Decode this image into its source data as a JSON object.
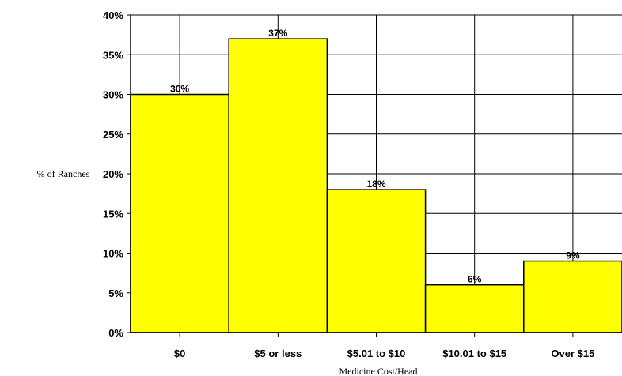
{
  "chart_data": {
    "type": "bar",
    "title": "",
    "xlabel": "Medicine Cost/Head",
    "ylabel": "% of Ranches",
    "categories": [
      "$0",
      "$5 or less",
      "$5.01 to $10",
      "$10.01 to $15",
      "Over $15"
    ],
    "values": [
      30,
      37,
      18,
      6,
      9
    ],
    "data_labels": [
      "30%",
      "37%",
      "18%",
      "6%",
      "9%"
    ],
    "ylim": [
      0,
      40
    ],
    "yticks": [
      0,
      5,
      10,
      15,
      20,
      25,
      30,
      35,
      40
    ],
    "ytick_labels": [
      "0%",
      "5%",
      "10%",
      "15%",
      "20%",
      "25%",
      "30%",
      "35%",
      "40%"
    ],
    "bar_color": "#ffff00",
    "grid": true,
    "legend": "none"
  }
}
